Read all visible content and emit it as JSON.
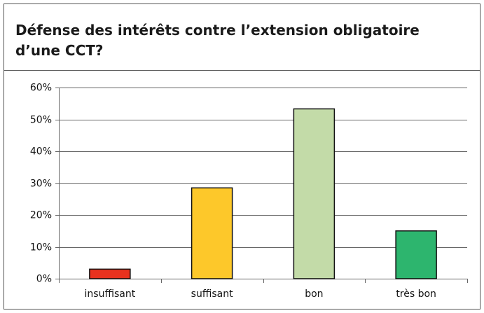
{
  "chart_data": {
    "type": "bar",
    "title": [
      "Défense  des intérêts contre l’extension obligatoire",
      "d’une CCT?"
    ],
    "categories": [
      "insuffisant",
      "suffisant",
      "bon",
      "très bon"
    ],
    "values": [
      3,
      28.5,
      53.3,
      15
    ],
    "colors": [
      "#e8321e",
      "#fdc82a",
      "#c3dba8",
      "#2db56e"
    ],
    "ylim": [
      0,
      60
    ],
    "yticks": [
      {
        "value": 0,
        "label": "0%"
      },
      {
        "value": 10,
        "label": "10%"
      },
      {
        "value": 20,
        "label": "20%"
      },
      {
        "value": 30,
        "label": "30%"
      },
      {
        "value": 40,
        "label": "40%"
      },
      {
        "value": 50,
        "label": "50%"
      },
      {
        "value": 60,
        "label": "60%"
      }
    ],
    "grid": true
  }
}
